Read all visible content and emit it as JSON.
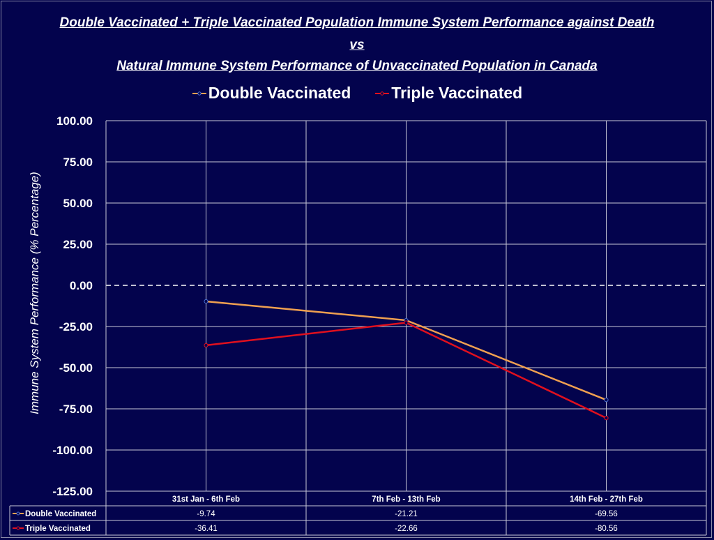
{
  "title": {
    "line1": "Double Vaccinated + Triple Vaccinated Population Immune System Performance against Death",
    "line2": "vs",
    "line3": "Natural Immune System Performance of Unvaccinated Population in Canada"
  },
  "chart_data": {
    "type": "line",
    "categories": [
      "31st Jan - 6th Feb",
      "7th Feb - 13th Feb",
      "14th Feb - 27th Feb"
    ],
    "series": [
      {
        "name": "Double Vaccinated",
        "values": [
          -9.74,
          -21.21,
          -69.56
        ],
        "color": "#f0a050",
        "value_labels": [
          "-9.74",
          "-21.21",
          "-69.56"
        ]
      },
      {
        "name": "Triple Vaccinated",
        "values": [
          -36.41,
          -22.66,
          -80.56
        ],
        "color": "#e0101e",
        "value_labels": [
          "-36.41",
          "-22.66",
          "-80.56"
        ]
      }
    ],
    "ylabel": "Immune System Performance (% Percentage)",
    "ylim": [
      -125,
      100
    ],
    "yticks": [
      100,
      75,
      50,
      25,
      0,
      -25,
      -50,
      -75,
      -100,
      -125
    ],
    "ytick_labels": [
      "100.00",
      "75.00",
      "50.00",
      "25.00",
      "0.00",
      "-25.00",
      "-50.00",
      "-75.00",
      "-100.00",
      "-125.00"
    ],
    "zero_line": "dashed",
    "grid": true,
    "legend": "top-center",
    "data_table": true
  }
}
